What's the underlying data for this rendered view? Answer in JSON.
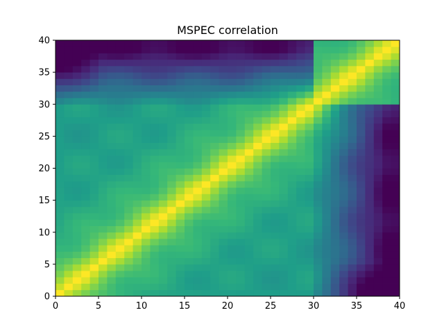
{
  "chart_data": {
    "type": "heatmap",
    "title": "MSPEC correlation",
    "xlabel": "",
    "ylabel": "",
    "xlim": [
      0,
      40
    ],
    "ylim": [
      0,
      40
    ],
    "n_cells": 40,
    "x_ticks": [
      0,
      5,
      10,
      15,
      20,
      25,
      30,
      35,
      40
    ],
    "y_ticks": [
      0,
      5,
      10,
      15,
      20,
      25,
      30,
      35,
      40
    ],
    "x_tick_labels": [
      "0",
      "5",
      "10",
      "15",
      "20",
      "25",
      "30",
      "35",
      "40"
    ],
    "y_tick_labels": [
      "0",
      "5",
      "10",
      "15",
      "20",
      "25",
      "30",
      "35",
      "40"
    ],
    "colormap": "viridis",
    "value_range": [
      0.0,
      1.0
    ],
    "grid": false,
    "legend": "none",
    "colors": {
      "viridis": [
        "#440154",
        "#482878",
        "#3e4989",
        "#31688e",
        "#26828e",
        "#1f9e89",
        "#35b779",
        "#6ece58",
        "#b5de2b",
        "#fde725"
      ]
    },
    "structure": "symmetric correlation matrix; diagonal = 1.0 (yellow); cells 0-31 mutually high (~0.65-0.85); cells 37-39 strongly anticorrelated with cells 0-4 (dark purple)",
    "matrix_rule": "value[i][j] = clamp(0.35 + 0.65*exp(-|i-j|/6) + r(i)*r(j)*0.55, 0, 1) with r(k) = 0 for k<30, rising linearly to -1 at k=39 and cross-term sign flipped for far-block pairs"
  }
}
